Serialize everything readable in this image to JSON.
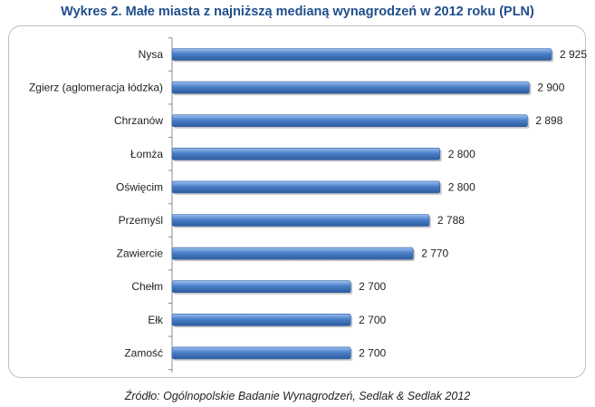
{
  "title": "Wykres 2. Małe miasta z najniższą medianą wynagrodzeń w 2012 roku (PLN)",
  "source": "Źródło: Ogólnopolskie Badanie Wynagrodzeń, Sedlak & Sedlak 2012",
  "colors": {
    "bar": "#4a7fc8",
    "bar_dark": "#2f5fa3",
    "title": "#1f4e8c"
  },
  "chart_data": {
    "type": "bar",
    "orientation": "horizontal",
    "title": "Wykres 2. Małe miasta z najniższą medianą wynagrodzeń w 2012 roku (PLN)",
    "categories": [
      "Nysa",
      "Zgierz (aglomeracja łódzka)",
      "Chrzanów",
      "Łomża",
      "Oświęcim",
      "Przemyśl",
      "Zawiercie",
      "Chełm",
      "Ełk",
      "Zamość"
    ],
    "values": [
      2925,
      2900,
      2898,
      2800,
      2800,
      2788,
      2770,
      2700,
      2700,
      2700
    ],
    "value_labels": [
      "2 925",
      "2 900",
      "2 898",
      "2 800",
      "2 800",
      "2 788",
      "2 770",
      "2 700",
      "2 700",
      "2 700"
    ],
    "xlim": [
      2500,
      2925
    ],
    "grid": false,
    "legend": "none"
  }
}
